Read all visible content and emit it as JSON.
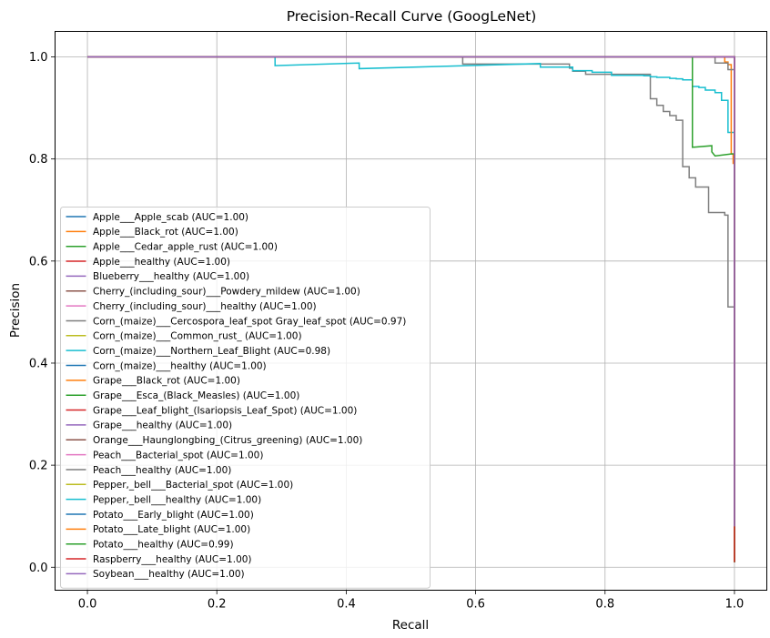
{
  "chart_data": {
    "type": "line",
    "title": "Precision-Recall Curve (GoogLeNet)",
    "xlabel": "Recall",
    "ylabel": "Precision",
    "xlim": [
      -0.05,
      1.05
    ],
    "ylim": [
      -0.045,
      1.05
    ],
    "xticks": [
      0.0,
      0.2,
      0.4,
      0.6,
      0.8,
      1.0
    ],
    "yticks": [
      0.0,
      0.2,
      0.4,
      0.6,
      0.8,
      1.0
    ],
    "xtick_labels": [
      "0.0",
      "0.2",
      "0.4",
      "0.6",
      "0.8",
      "1.0"
    ],
    "ytick_labels": [
      "0.0",
      "0.2",
      "0.4",
      "0.6",
      "0.8",
      "1.0"
    ],
    "grid": true,
    "legend_position": "lower-left",
    "series": [
      {
        "name": "Apple___Apple_scab (AUC=1.00)",
        "color": "#1f77b4",
        "x": [
          0,
          1,
          1
        ],
        "y": [
          1,
          1,
          0.01
        ]
      },
      {
        "name": "Apple___Black_rot (AUC=1.00)",
        "color": "#ff7f0e",
        "x": [
          0,
          1,
          1
        ],
        "y": [
          1,
          1,
          0.01
        ]
      },
      {
        "name": "Apple___Cedar_apple_rust (AUC=1.00)",
        "color": "#2ca02c",
        "x": [
          0,
          1,
          1
        ],
        "y": [
          1,
          1,
          0.01
        ]
      },
      {
        "name": "Apple___healthy (AUC=1.00)",
        "color": "#d62728",
        "x": [
          0,
          1,
          1
        ],
        "y": [
          1,
          1,
          0.01
        ]
      },
      {
        "name": "Blueberry___healthy (AUC=1.00)",
        "color": "#9467bd",
        "x": [
          0,
          1,
          1
        ],
        "y": [
          1,
          1,
          0.01
        ]
      },
      {
        "name": "Cherry_(including_sour)___Powdery_mildew (AUC=1.00)",
        "color": "#8c564b",
        "x": [
          0,
          1,
          1
        ],
        "y": [
          1,
          1,
          0.01
        ]
      },
      {
        "name": "Cherry_(including_sour)___healthy (AUC=1.00)",
        "color": "#e377c2",
        "x": [
          0,
          1,
          1
        ],
        "y": [
          1,
          1,
          0.01
        ]
      },
      {
        "name": "Corn_(maize)___Cercospora_leaf_spot Gray_leaf_spot (AUC=0.97)",
        "color": "#7f7f7f",
        "x": [
          0,
          0.58,
          0.58,
          0.745,
          0.745,
          0.75,
          0.75,
          0.77,
          0.77,
          0.79,
          0.79,
          0.87,
          0.87,
          0.88,
          0.88,
          0.89,
          0.89,
          0.9,
          0.9,
          0.91,
          0.91,
          0.92,
          0.92,
          0.93,
          0.93,
          0.94,
          0.94,
          0.96,
          0.96,
          0.985,
          0.985,
          0.99,
          0.99,
          0.995,
          0.995,
          1.0,
          1.0
        ],
        "y": [
          1,
          1,
          0.986,
          0.986,
          0.978,
          0.978,
          0.972,
          0.972,
          0.966,
          0.966,
          0.966,
          0.966,
          0.918,
          0.918,
          0.905,
          0.905,
          0.893,
          0.893,
          0.885,
          0.885,
          0.876,
          0.876,
          0.785,
          0.785,
          0.763,
          0.763,
          0.745,
          0.745,
          0.695,
          0.695,
          0.69,
          0.69,
          0.51,
          0.51,
          0.51,
          0.51,
          0.01
        ]
      },
      {
        "name": "Corn_(maize)___Common_rust_ (AUC=1.00)",
        "color": "#bcbd22",
        "x": [
          0,
          1,
          1
        ],
        "y": [
          1,
          1,
          0.01
        ]
      },
      {
        "name": "Corn_(maize)___Northern_Leaf_Blight (AUC=0.98)",
        "color": "#17becf",
        "x": [
          0,
          0.29,
          0.29,
          0.42,
          0.42,
          0.7,
          0.7,
          0.75,
          0.75,
          0.78,
          0.78,
          0.81,
          0.81,
          0.82,
          0.82,
          0.86,
          0.86,
          0.87,
          0.87,
          0.88,
          0.88,
          0.9,
          0.9,
          0.91,
          0.91,
          0.92,
          0.92,
          0.935,
          0.935,
          0.945,
          0.945,
          0.955,
          0.955,
          0.97,
          0.97,
          0.98,
          0.98,
          0.99,
          0.99,
          1.0,
          1.0
        ],
        "y": [
          1,
          1,
          0.983,
          0.988,
          0.977,
          0.987,
          0.98,
          0.98,
          0.973,
          0.973,
          0.97,
          0.97,
          0.964,
          0.964,
          0.964,
          0.964,
          0.963,
          0.963,
          0.961,
          0.961,
          0.96,
          0.96,
          0.958,
          0.958,
          0.957,
          0.957,
          0.955,
          0.955,
          0.942,
          0.942,
          0.94,
          0.94,
          0.935,
          0.935,
          0.93,
          0.93,
          0.915,
          0.915,
          0.852,
          0.852,
          0.01
        ]
      },
      {
        "name": "Corn_(maize)___healthy (AUC=1.00)",
        "color": "#1f77b4",
        "x": [
          0,
          1,
          1
        ],
        "y": [
          1,
          1,
          0.01
        ]
      },
      {
        "name": "Grape___Black_rot (AUC=1.00)",
        "color": "#ff7f0e",
        "x": [
          0,
          0.985,
          0.985,
          0.99,
          0.99,
          0.995,
          0.995,
          0.998,
          0.998
        ],
        "y": [
          1,
          1,
          0.99,
          0.99,
          0.985,
          0.985,
          0.81,
          0.81,
          0.79
        ]
      },
      {
        "name": "Grape___Esca_(Black_Measles) (AUC=1.00)",
        "color": "#2ca02c",
        "x": [
          0,
          1,
          1
        ],
        "y": [
          1,
          1,
          0.01
        ]
      },
      {
        "name": "Grape___Leaf_blight_(Isariopsis_Leaf_Spot) (AUC=1.00)",
        "color": "#d62728",
        "x": [
          0,
          1,
          1
        ],
        "y": [
          1,
          1,
          0.01
        ]
      },
      {
        "name": "Grape___healthy (AUC=1.00)",
        "color": "#9467bd",
        "x": [
          0,
          1,
          1
        ],
        "y": [
          1,
          1,
          0.01
        ]
      },
      {
        "name": "Orange___Haunglongbing_(Citrus_greening) (AUC=1.00)",
        "color": "#8c564b",
        "x": [
          0,
          1,
          1
        ],
        "y": [
          1,
          1,
          0.01
        ]
      },
      {
        "name": "Peach___Bacterial_spot (AUC=1.00)",
        "color": "#e377c2",
        "x": [
          0,
          1,
          1
        ],
        "y": [
          1,
          1,
          0.01
        ]
      },
      {
        "name": "Peach___healthy (AUC=1.00)",
        "color": "#7f7f7f",
        "x": [
          0,
          0.97,
          0.97,
          0.99,
          0.99,
          1.0,
          1.0
        ],
        "y": [
          1,
          1,
          0.988,
          0.988,
          0.975,
          0.975,
          0.01
        ]
      },
      {
        "name": "Pepper,_bell___Bacterial_spot (AUC=1.00)",
        "color": "#bcbd22",
        "x": [
          0,
          1,
          1
        ],
        "y": [
          1,
          1,
          0.01
        ]
      },
      {
        "name": "Pepper,_bell___healthy (AUC=1.00)",
        "color": "#17becf",
        "x": [
          0,
          1,
          1
        ],
        "y": [
          1,
          1,
          0.01
        ]
      },
      {
        "name": "Potato___Early_blight (AUC=1.00)",
        "color": "#1f77b4",
        "x": [
          0,
          1,
          1
        ],
        "y": [
          1,
          1,
          0.01
        ]
      },
      {
        "name": "Potato___Late_blight (AUC=1.00)",
        "color": "#ff7f0e",
        "x": [
          0,
          1,
          1
        ],
        "y": [
          1,
          1,
          0.01
        ]
      },
      {
        "name": "Potato___healthy (AUC=0.99)",
        "color": "#2ca02c",
        "x": [
          0,
          0.932,
          0.932,
          0.935,
          0.935,
          0.965,
          0.965,
          0.97,
          0.97,
          0.995,
          0.995,
          1.0,
          1.0
        ],
        "y": [
          1,
          1,
          1.0,
          1.0,
          0.823,
          0.826,
          0.814,
          0.806,
          0.806,
          0.81,
          0.81,
          0.81,
          0.01
        ]
      },
      {
        "name": "Raspberry___healthy (AUC=1.00)",
        "color": "#d62728",
        "x": [
          0,
          1,
          1
        ],
        "y": [
          1,
          1,
          0.01
        ]
      },
      {
        "name": "Soybean___healthy (AUC=1.00)",
        "color": "#9467bd",
        "x": [
          0,
          1,
          1
        ],
        "y": [
          1,
          1,
          0.08
        ]
      }
    ]
  }
}
